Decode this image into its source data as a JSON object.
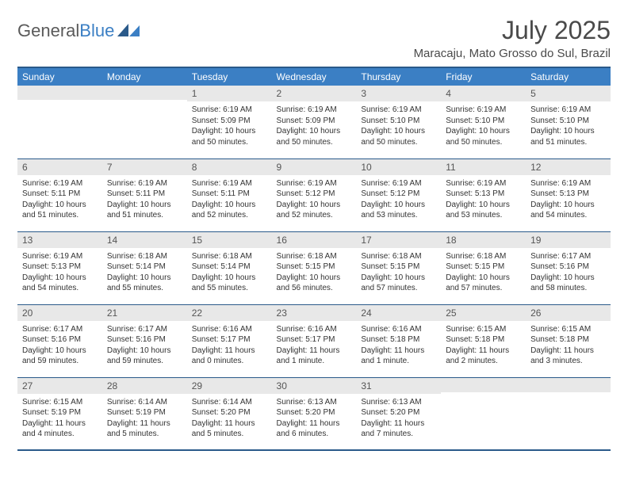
{
  "logo": {
    "text1": "General",
    "text2": "Blue"
  },
  "title": "July 2025",
  "location": "Maracaju, Mato Grosso do Sul, Brazil",
  "colors": {
    "header_bg": "#3b7fc4",
    "header_border": "#2a5a8a",
    "daynum_bg": "#e8e8e8",
    "text": "#333333"
  },
  "days_of_week": [
    "Sunday",
    "Monday",
    "Tuesday",
    "Wednesday",
    "Thursday",
    "Friday",
    "Saturday"
  ],
  "weeks": [
    [
      {
        "n": "",
        "sr": "",
        "ss": "",
        "dl": ""
      },
      {
        "n": "",
        "sr": "",
        "ss": "",
        "dl": ""
      },
      {
        "n": "1",
        "sr": "Sunrise: 6:19 AM",
        "ss": "Sunset: 5:09 PM",
        "dl": "Daylight: 10 hours and 50 minutes."
      },
      {
        "n": "2",
        "sr": "Sunrise: 6:19 AM",
        "ss": "Sunset: 5:09 PM",
        "dl": "Daylight: 10 hours and 50 minutes."
      },
      {
        "n": "3",
        "sr": "Sunrise: 6:19 AM",
        "ss": "Sunset: 5:10 PM",
        "dl": "Daylight: 10 hours and 50 minutes."
      },
      {
        "n": "4",
        "sr": "Sunrise: 6:19 AM",
        "ss": "Sunset: 5:10 PM",
        "dl": "Daylight: 10 hours and 50 minutes."
      },
      {
        "n": "5",
        "sr": "Sunrise: 6:19 AM",
        "ss": "Sunset: 5:10 PM",
        "dl": "Daylight: 10 hours and 51 minutes."
      }
    ],
    [
      {
        "n": "6",
        "sr": "Sunrise: 6:19 AM",
        "ss": "Sunset: 5:11 PM",
        "dl": "Daylight: 10 hours and 51 minutes."
      },
      {
        "n": "7",
        "sr": "Sunrise: 6:19 AM",
        "ss": "Sunset: 5:11 PM",
        "dl": "Daylight: 10 hours and 51 minutes."
      },
      {
        "n": "8",
        "sr": "Sunrise: 6:19 AM",
        "ss": "Sunset: 5:11 PM",
        "dl": "Daylight: 10 hours and 52 minutes."
      },
      {
        "n": "9",
        "sr": "Sunrise: 6:19 AM",
        "ss": "Sunset: 5:12 PM",
        "dl": "Daylight: 10 hours and 52 minutes."
      },
      {
        "n": "10",
        "sr": "Sunrise: 6:19 AM",
        "ss": "Sunset: 5:12 PM",
        "dl": "Daylight: 10 hours and 53 minutes."
      },
      {
        "n": "11",
        "sr": "Sunrise: 6:19 AM",
        "ss": "Sunset: 5:13 PM",
        "dl": "Daylight: 10 hours and 53 minutes."
      },
      {
        "n": "12",
        "sr": "Sunrise: 6:19 AM",
        "ss": "Sunset: 5:13 PM",
        "dl": "Daylight: 10 hours and 54 minutes."
      }
    ],
    [
      {
        "n": "13",
        "sr": "Sunrise: 6:19 AM",
        "ss": "Sunset: 5:13 PM",
        "dl": "Daylight: 10 hours and 54 minutes."
      },
      {
        "n": "14",
        "sr": "Sunrise: 6:18 AM",
        "ss": "Sunset: 5:14 PM",
        "dl": "Daylight: 10 hours and 55 minutes."
      },
      {
        "n": "15",
        "sr": "Sunrise: 6:18 AM",
        "ss": "Sunset: 5:14 PM",
        "dl": "Daylight: 10 hours and 55 minutes."
      },
      {
        "n": "16",
        "sr": "Sunrise: 6:18 AM",
        "ss": "Sunset: 5:15 PM",
        "dl": "Daylight: 10 hours and 56 minutes."
      },
      {
        "n": "17",
        "sr": "Sunrise: 6:18 AM",
        "ss": "Sunset: 5:15 PM",
        "dl": "Daylight: 10 hours and 57 minutes."
      },
      {
        "n": "18",
        "sr": "Sunrise: 6:18 AM",
        "ss": "Sunset: 5:15 PM",
        "dl": "Daylight: 10 hours and 57 minutes."
      },
      {
        "n": "19",
        "sr": "Sunrise: 6:17 AM",
        "ss": "Sunset: 5:16 PM",
        "dl": "Daylight: 10 hours and 58 minutes."
      }
    ],
    [
      {
        "n": "20",
        "sr": "Sunrise: 6:17 AM",
        "ss": "Sunset: 5:16 PM",
        "dl": "Daylight: 10 hours and 59 minutes."
      },
      {
        "n": "21",
        "sr": "Sunrise: 6:17 AM",
        "ss": "Sunset: 5:16 PM",
        "dl": "Daylight: 10 hours and 59 minutes."
      },
      {
        "n": "22",
        "sr": "Sunrise: 6:16 AM",
        "ss": "Sunset: 5:17 PM",
        "dl": "Daylight: 11 hours and 0 minutes."
      },
      {
        "n": "23",
        "sr": "Sunrise: 6:16 AM",
        "ss": "Sunset: 5:17 PM",
        "dl": "Daylight: 11 hours and 1 minute."
      },
      {
        "n": "24",
        "sr": "Sunrise: 6:16 AM",
        "ss": "Sunset: 5:18 PM",
        "dl": "Daylight: 11 hours and 1 minute."
      },
      {
        "n": "25",
        "sr": "Sunrise: 6:15 AM",
        "ss": "Sunset: 5:18 PM",
        "dl": "Daylight: 11 hours and 2 minutes."
      },
      {
        "n": "26",
        "sr": "Sunrise: 6:15 AM",
        "ss": "Sunset: 5:18 PM",
        "dl": "Daylight: 11 hours and 3 minutes."
      }
    ],
    [
      {
        "n": "27",
        "sr": "Sunrise: 6:15 AM",
        "ss": "Sunset: 5:19 PM",
        "dl": "Daylight: 11 hours and 4 minutes."
      },
      {
        "n": "28",
        "sr": "Sunrise: 6:14 AM",
        "ss": "Sunset: 5:19 PM",
        "dl": "Daylight: 11 hours and 5 minutes."
      },
      {
        "n": "29",
        "sr": "Sunrise: 6:14 AM",
        "ss": "Sunset: 5:20 PM",
        "dl": "Daylight: 11 hours and 5 minutes."
      },
      {
        "n": "30",
        "sr": "Sunrise: 6:13 AM",
        "ss": "Sunset: 5:20 PM",
        "dl": "Daylight: 11 hours and 6 minutes."
      },
      {
        "n": "31",
        "sr": "Sunrise: 6:13 AM",
        "ss": "Sunset: 5:20 PM",
        "dl": "Daylight: 11 hours and 7 minutes."
      },
      {
        "n": "",
        "sr": "",
        "ss": "",
        "dl": ""
      },
      {
        "n": "",
        "sr": "",
        "ss": "",
        "dl": ""
      }
    ]
  ]
}
